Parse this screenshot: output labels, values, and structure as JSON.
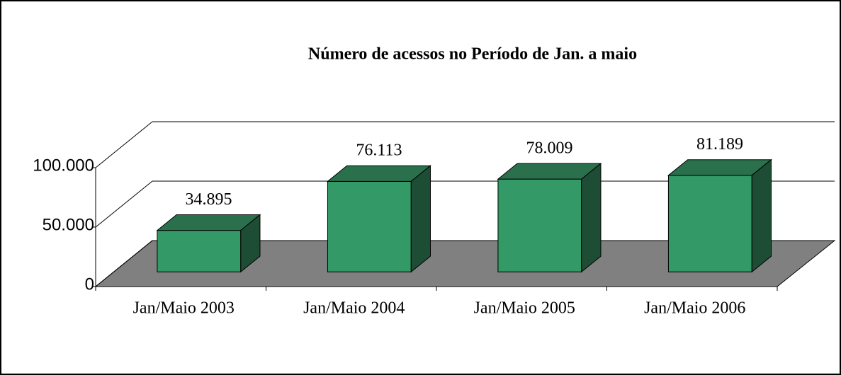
{
  "chart_data": {
    "type": "bar3d",
    "title": "Número de acessos no Período de Jan. a maio",
    "categories": [
      "Jan/Maio 2003",
      "Jan/Maio 2004",
      "Jan/Maio 2005",
      "Jan/Maio 2006"
    ],
    "values": [
      34895,
      76113,
      78009,
      81189
    ],
    "value_labels": [
      "34.895",
      "76.113",
      "78.009",
      "81.189"
    ],
    "color": "#339966",
    "ylim": [
      0,
      100000
    ],
    "yticks": [
      0,
      {
        "value": 50000,
        "label": "50.000"
      },
      {
        "value": 100000,
        "label": "100.000"
      }
    ],
    "grid": true
  }
}
